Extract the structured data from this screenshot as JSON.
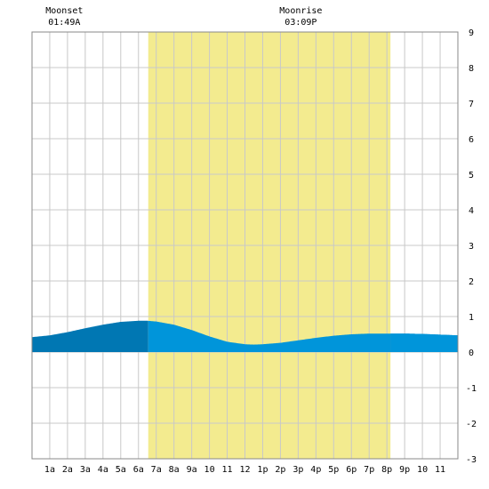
{
  "chart_data": {
    "type": "area",
    "title": "",
    "xlabel": "",
    "ylabel": "",
    "x_tick_labels": [
      "1a",
      "2a",
      "3a",
      "4a",
      "5a",
      "6a",
      "7a",
      "8a",
      "9a",
      "10",
      "11",
      "12",
      "1p",
      "2p",
      "3p",
      "4p",
      "5p",
      "6p",
      "7p",
      "8p",
      "9p",
      "10",
      "11"
    ],
    "x_range_hours": [
      0,
      24
    ],
    "ylim": [
      -3,
      9
    ],
    "y_ticks": [
      -3,
      -2,
      -1,
      0,
      1,
      2,
      3,
      4,
      5,
      6,
      7,
      8,
      9
    ],
    "grid": true,
    "daylight_hours": [
      6.55,
      20.2
    ],
    "series": [
      {
        "name": "",
        "x_hours": [
          0,
          1,
          2,
          3,
          4,
          5,
          6,
          6.5,
          7,
          8,
          9,
          10,
          11,
          12,
          12.5,
          13,
          14,
          15,
          16,
          17,
          18,
          19,
          20,
          21,
          22,
          23,
          24
        ],
        "values": [
          0.42,
          0.47,
          0.56,
          0.67,
          0.77,
          0.85,
          0.88,
          0.88,
          0.86,
          0.77,
          0.62,
          0.44,
          0.29,
          0.22,
          0.21,
          0.22,
          0.26,
          0.33,
          0.4,
          0.46,
          0.5,
          0.52,
          0.52,
          0.52,
          0.51,
          0.49,
          0.47
        ]
      }
    ],
    "colors": {
      "daylight": "#f3eb8f",
      "tide_night": "#0077b3",
      "tide_day": "#0095da",
      "grid": "#c8c8c8",
      "axis": "#888888"
    }
  },
  "moon_events": [
    {
      "label": "Moonset",
      "time": "01:49A",
      "hour": 1.82
    },
    {
      "label": "Moonrise",
      "time": "03:09P",
      "hour": 15.15
    }
  ]
}
